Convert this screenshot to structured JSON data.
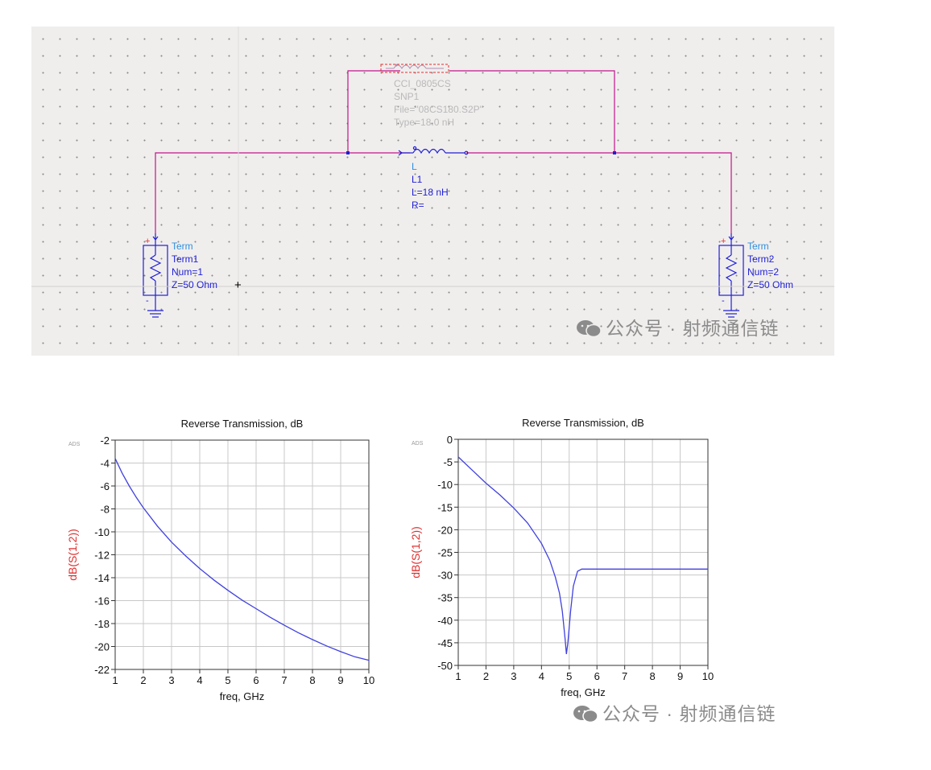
{
  "schematic": {
    "snp": {
      "lines": [
        "CCI_0805CS",
        "SNP1",
        "File=\"08CS180.S2P\"",
        "Type=18.0 nH"
      ]
    },
    "inductor": {
      "lines": [
        "L",
        "L1",
        "L=18 nH",
        "R="
      ]
    },
    "term1": {
      "lines": [
        "Term",
        "Term1",
        "Num=1",
        "Z=50 Ohm"
      ]
    },
    "term2": {
      "lines": [
        "Term",
        "Term2",
        "Num=2",
        "Z=50 Ohm"
      ]
    },
    "cursor": "+",
    "plus_marker": "+",
    "minus_marker": "-"
  },
  "watermark": {
    "text": "公众号 · 射频通信链"
  },
  "colors": {
    "wire": "#c0148c",
    "component": "#1f1fd6",
    "component_label": "#2f8fe0",
    "disabled": "#b9b9b9",
    "trace": "#4040e0",
    "ylabel": "#e03030"
  },
  "chart_data": [
    {
      "type": "line",
      "title": "Reverse Transmission, dB",
      "xlabel": "freq, GHz",
      "ylabel": "dB(S(1,2))",
      "corner_label": "ADS",
      "xlim": [
        1,
        10
      ],
      "ylim": [
        -22,
        -2
      ],
      "xticks": [
        1,
        2,
        3,
        4,
        5,
        6,
        7,
        8,
        9,
        10
      ],
      "yticks": [
        -22,
        -20,
        -18,
        -16,
        -14,
        -12,
        -10,
        -8,
        -6,
        -4,
        -2
      ],
      "grid": true,
      "series": [
        {
          "x": [
            1,
            1.25,
            1.5,
            1.75,
            2,
            2.5,
            3,
            3.5,
            4,
            4.5,
            5,
            5.5,
            6,
            6.5,
            7,
            7.5,
            8,
            8.5,
            9,
            9.5,
            10
          ],
          "y": [
            -3.6,
            -4.9,
            -6.0,
            -7.0,
            -7.9,
            -9.5,
            -10.9,
            -12.1,
            -13.2,
            -14.2,
            -15.1,
            -15.95,
            -16.7,
            -17.45,
            -18.15,
            -18.8,
            -19.4,
            -19.95,
            -20.45,
            -20.9,
            -21.2
          ]
        }
      ]
    },
    {
      "type": "line",
      "title": "Reverse Transmission, dB",
      "xlabel": "freq, GHz",
      "ylabel": "dB(S(1,2))",
      "corner_label": "ADS",
      "xlim": [
        1,
        10
      ],
      "ylim": [
        -50,
        0
      ],
      "xticks": [
        1,
        2,
        3,
        4,
        5,
        6,
        7,
        8,
        9,
        10
      ],
      "yticks": [
        -50,
        -45,
        -40,
        -35,
        -30,
        -25,
        -20,
        -15,
        -10,
        -5,
        0
      ],
      "grid": true,
      "series": [
        {
          "x": [
            1,
            1.5,
            2,
            2.5,
            3,
            3.5,
            4,
            4.3,
            4.5,
            4.65,
            4.75,
            4.85,
            4.9,
            4.95,
            5.05,
            5.15,
            5.3,
            5.45,
            6,
            7,
            8,
            9,
            10
          ],
          "y": [
            -3.9,
            -6.8,
            -9.7,
            -12.3,
            -15.2,
            -18.5,
            -23.0,
            -26.8,
            -30.5,
            -34.0,
            -38.0,
            -44.0,
            -47.5,
            -45.0,
            -38.0,
            -32.5,
            -29.2,
            -28.7,
            -28.7,
            -28.7,
            -28.7,
            -28.7,
            -28.7
          ]
        }
      ]
    }
  ]
}
